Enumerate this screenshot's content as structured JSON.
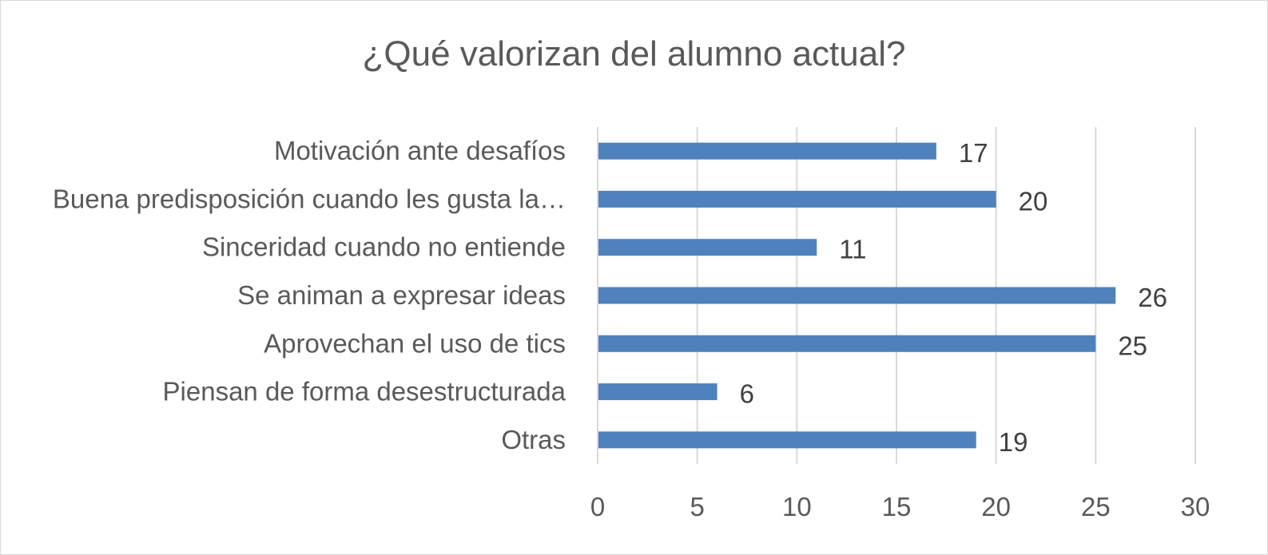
{
  "chart_data": {
    "type": "bar",
    "orientation": "horizontal",
    "title": "¿Qué valorizan del alumno actual?",
    "categories": [
      "Motivación ante desafíos",
      "Buena predisposición cuando les gusta la…",
      "Sinceridad cuando no entiende",
      "Se animan a expresar ideas",
      "Aprovechan el uso de tics",
      "Piensan de forma desestructurada",
      "Otras"
    ],
    "values": [
      17,
      20,
      11,
      26,
      25,
      6,
      19
    ],
    "xlim": [
      0,
      30
    ],
    "xticks": [
      "0",
      "5",
      "10",
      "15",
      "20",
      "25",
      "30"
    ],
    "grid": "vertical",
    "bar_color": "#4f81bd",
    "data_labels": true
  }
}
